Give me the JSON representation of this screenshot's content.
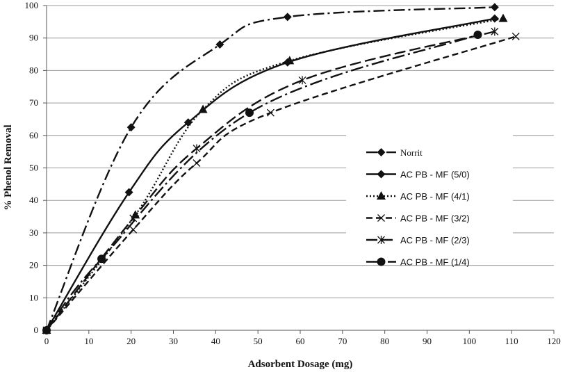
{
  "chart_data": {
    "type": "line",
    "xlabel": "Adsorbent Dosage (mg)",
    "ylabel": "% Phenol Removal",
    "xlim": [
      0,
      120
    ],
    "ylim": [
      0,
      100
    ],
    "x_ticks": [
      0,
      10,
      20,
      30,
      40,
      50,
      60,
      70,
      80,
      90,
      100,
      110,
      120
    ],
    "y_ticks": [
      0,
      10,
      20,
      30,
      40,
      50,
      60,
      70,
      80,
      90,
      100
    ],
    "grid": "horizontal",
    "legend_position": "right",
    "series": [
      {
        "name": "Norrit",
        "style": "dash-dot",
        "marker": "diamond",
        "points": [
          [
            0,
            0
          ],
          [
            20,
            62.5
          ],
          [
            41,
            88
          ],
          [
            57,
            96.5
          ],
          [
            106,
            99.5
          ]
        ]
      },
      {
        "name": "AC PB - MF (5/0)",
        "style": "solid",
        "marker": "diamond",
        "points": [
          [
            0,
            0
          ],
          [
            19.5,
            42.5
          ],
          [
            33.5,
            64
          ],
          [
            57,
            82.5
          ],
          [
            106,
            96
          ]
        ]
      },
      {
        "name": "AC PB - MF (4/1)",
        "style": "dotted",
        "marker": "triangle",
        "points": [
          [
            0,
            0
          ],
          [
            21,
            35.5
          ],
          [
            37,
            68
          ],
          [
            57.5,
            83
          ],
          [
            108,
            96
          ]
        ]
      },
      {
        "name": "AC PB - MF (3/2)",
        "style": "dashed",
        "marker": "x",
        "points": [
          [
            0,
            0
          ],
          [
            20.5,
            31
          ],
          [
            35.5,
            51.5
          ],
          [
            53,
            67
          ],
          [
            111,
            90.5
          ]
        ]
      },
      {
        "name": "AC PB - MF (2/3)",
        "style": "long-dash",
        "marker": "asterisk",
        "points": [
          [
            0,
            0
          ],
          [
            20.5,
            34.5
          ],
          [
            35.5,
            56
          ],
          [
            60.5,
            77
          ],
          [
            106,
            92
          ]
        ]
      },
      {
        "name": "AC PB - MF (1/4)",
        "style": "long-dash-dot",
        "marker": "circle",
        "points": [
          [
            0,
            0
          ],
          [
            13,
            22
          ],
          [
            48,
            67
          ],
          [
            102,
            91
          ]
        ]
      }
    ]
  }
}
